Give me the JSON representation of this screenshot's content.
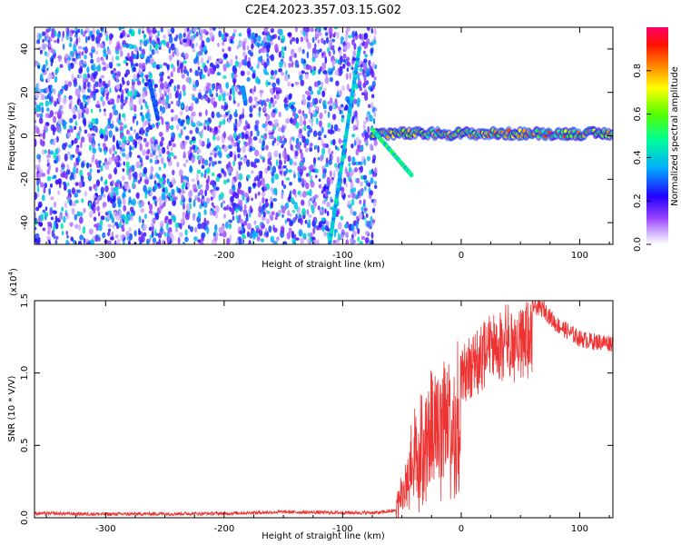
{
  "title": "C2E4.2023.357.03.15.G02",
  "chart_data": [
    {
      "type": "heatmap",
      "xlabel": "Height of straight line (km)",
      "ylabel": "Frequency (Hz)",
      "xlim": [
        -360,
        128
      ],
      "ylim": [
        -50,
        50
      ],
      "x_ticks": [
        -300,
        -200,
        -100,
        0,
        100
      ],
      "x_tick_labels": [
        "-300",
        "-200",
        "-100",
        "0",
        "100"
      ],
      "y_ticks": [
        -40,
        -20,
        0,
        20,
        40
      ],
      "y_tick_labels": [
        "-40",
        "-20",
        "0",
        "20",
        "40"
      ],
      "colorbar": {
        "label": "Normalized spectral amplitude",
        "range": [
          0,
          1
        ],
        "ticks": [
          0.0,
          0.2,
          0.4,
          0.6,
          0.8
        ],
        "tick_labels": [
          "0.0",
          "0.2",
          "0.4",
          "0.6",
          "0.8"
        ],
        "colormap": [
          "#ffffff",
          "#b07cff",
          "#7a00ff",
          "#0000ff",
          "#00ccff",
          "#00ff66",
          "#aaff00",
          "#ffee00",
          "#ff6600",
          "#ff0033",
          "#ff0066"
        ]
      },
      "features": {
        "noise_region_x": [
          -360,
          -72
        ],
        "noise_intensity_range": [
          0.05,
          0.45
        ],
        "streaks": [
          {
            "x": [
              -111,
              -86
            ],
            "y": [
              -50,
              40
            ],
            "peak": 0.45
          },
          {
            "x": [
              -263,
              -256
            ],
            "y": [
              25,
              8
            ],
            "peak": 0.35
          },
          {
            "x": [
              -184,
              -182
            ],
            "y": [
              22,
              15
            ],
            "peak": 0.4
          }
        ],
        "carrier_line": {
          "x": [
            -75,
            128
          ],
          "y": 1,
          "peak": 0.9
        },
        "descending_branch": {
          "x": [
            -75,
            -42
          ],
          "y": [
            3,
            -18
          ],
          "peak": 0.6
        }
      },
      "grid": false
    },
    {
      "type": "line",
      "xlabel": "Height of straight line (km)",
      "ylabel": "SNR (10 * V/V)",
      "scale_label": "(x10",
      "scale_exp": "4",
      "scale_close": ")",
      "xlim": [
        -360,
        128
      ],
      "ylim": [
        0,
        15000
      ],
      "x_ticks": [
        -300,
        -200,
        -100,
        0,
        100
      ],
      "x_tick_labels": [
        "-300",
        "-200",
        "-100",
        "0",
        "100"
      ],
      "y_ticks": [
        0,
        5000,
        10000,
        15000
      ],
      "y_tick_labels": [
        "0.0",
        "0.5",
        "1.0",
        "1.5"
      ],
      "color": "#ee3333",
      "envelope": {
        "x": [
          -360,
          -300,
          -200,
          -150,
          -100,
          -70,
          -55,
          -50,
          -45,
          -40,
          -30,
          -20,
          -10,
          0,
          10,
          20,
          40,
          60,
          70,
          80,
          90,
          100,
          110,
          128
        ],
        "y": [
          300,
          250,
          300,
          400,
          350,
          350,
          500,
          2000,
          3500,
          6000,
          8000,
          10000,
          11500,
          12000,
          12500,
          13500,
          14500,
          14800,
          14500,
          13500,
          13000,
          12500,
          12300,
          12200
        ]
      },
      "grid": false
    }
  ]
}
